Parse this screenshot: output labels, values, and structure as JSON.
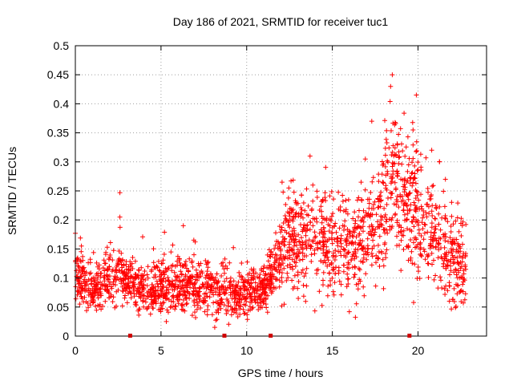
{
  "chart_data": {
    "type": "scatter",
    "title": "Day 186 of 2021, SRMTID for receiver tuc1",
    "xlabel": "GPS time / hours",
    "ylabel": "SRMTID / TECUs",
    "xlim": [
      0,
      24
    ],
    "ylim": [
      0,
      0.5
    ],
    "xticks": [
      0,
      5,
      10,
      15,
      20
    ],
    "yticks": [
      0,
      0.05,
      0.1,
      0.15,
      0.2,
      0.25,
      0.3,
      0.35,
      0.4,
      0.45,
      0.5
    ],
    "xtick_labels": [
      "0",
      "5",
      "10",
      "15",
      "20"
    ],
    "ytick_labels": [
      "0",
      "0.05",
      "0.1",
      "0.15",
      "0.2",
      "0.25",
      "0.3",
      "0.35",
      "0.4",
      "0.45",
      "0.5"
    ],
    "grid": true,
    "marker": "+",
    "color": "#ff0000",
    "axis_markers_x": [
      3.2,
      8.7,
      11.4,
      19.5
    ],
    "series_profile": {
      "x_range": [
        0,
        22.8
      ],
      "description_points": [
        [
          0.0,
          0.11
        ],
        [
          1.0,
          0.08
        ],
        [
          2.5,
          0.11
        ],
        [
          4.0,
          0.08
        ],
        [
          6.5,
          0.09
        ],
        [
          9.0,
          0.07
        ],
        [
          11.0,
          0.08
        ],
        [
          12.5,
          0.17
        ],
        [
          14.0,
          0.18
        ],
        [
          16.0,
          0.14
        ],
        [
          17.0,
          0.17
        ],
        [
          18.5,
          0.27
        ],
        [
          19.5,
          0.22
        ],
        [
          20.5,
          0.2
        ],
        [
          22.0,
          0.13
        ],
        [
          22.8,
          0.12
        ]
      ],
      "notable_points": [
        [
          0.0,
          0.177
        ],
        [
          2.6,
          0.247
        ],
        [
          2.6,
          0.205
        ],
        [
          6.3,
          0.19
        ],
        [
          13.7,
          0.31
        ],
        [
          17.3,
          0.37
        ],
        [
          18.5,
          0.45
        ],
        [
          18.4,
          0.43
        ],
        [
          19.9,
          0.415
        ],
        [
          20.8,
          0.32
        ],
        [
          21.6,
          0.27
        ]
      ]
    }
  }
}
